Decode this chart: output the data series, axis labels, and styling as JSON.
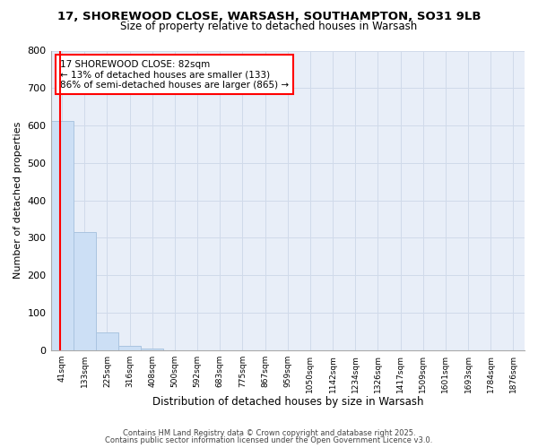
{
  "title_line1": "17, SHOREWOOD CLOSE, WARSASH, SOUTHAMPTON, SO31 9LB",
  "title_line2": "Size of property relative to detached houses in Warsash",
  "xlabel": "Distribution of detached houses by size in Warsash",
  "ylabel": "Number of detached properties",
  "categories": [
    "41sqm",
    "133sqm",
    "225sqm",
    "316sqm",
    "408sqm",
    "500sqm",
    "592sqm",
    "683sqm",
    "775sqm",
    "867sqm",
    "959sqm",
    "1050sqm",
    "1142sqm",
    "1234sqm",
    "1326sqm",
    "1417sqm",
    "1509sqm",
    "1601sqm",
    "1693sqm",
    "1784sqm",
    "1876sqm"
  ],
  "values": [
    613,
    315,
    47,
    12,
    5,
    0,
    0,
    0,
    0,
    0,
    0,
    0,
    0,
    0,
    0,
    0,
    0,
    0,
    0,
    0,
    0
  ],
  "bar_color": "#ccdff5",
  "bar_edge_color": "#aac4e0",
  "annotation_text": "17 SHOREWOOD CLOSE: 82sqm\n← 13% of detached houses are smaller (133)\n86% of semi-detached houses are larger (865) →",
  "annotation_box_color": "white",
  "annotation_box_edge_color": "red",
  "line_color": "red",
  "ylim": [
    0,
    800
  ],
  "yticks": [
    0,
    100,
    200,
    300,
    400,
    500,
    600,
    700,
    800
  ],
  "footer_line1": "Contains HM Land Registry data © Crown copyright and database right 2025.",
  "footer_line2": "Contains public sector information licensed under the Open Government Licence v3.0.",
  "bg_color": "#ffffff",
  "grid_color": "#d0daea"
}
